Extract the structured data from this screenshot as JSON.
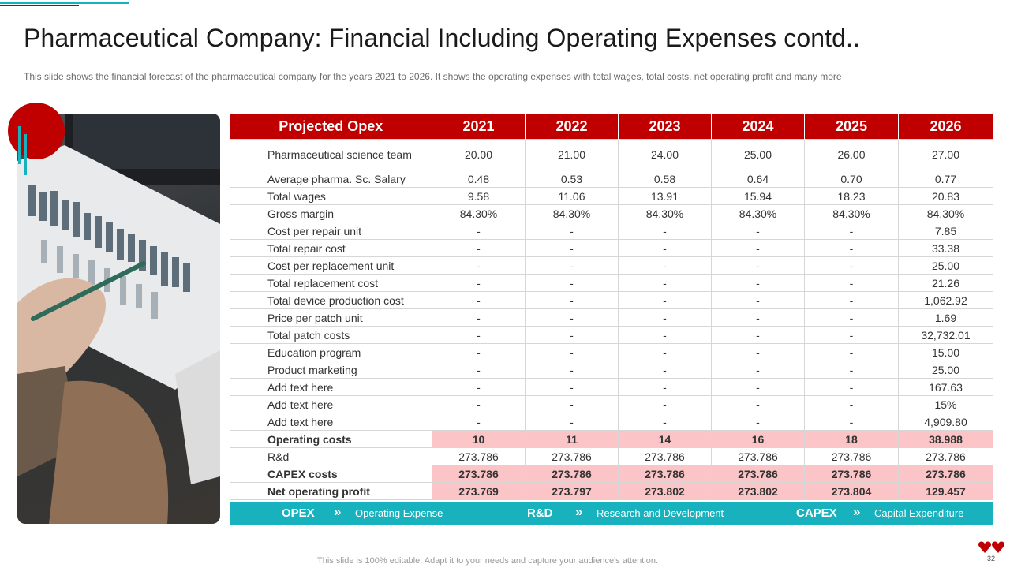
{
  "slide": {
    "title": "Pharmaceutical Company: Financial Including Operating Expenses contd..",
    "subtitle": "This slide shows the financial forecast of the pharmaceutical company for the years 2021 to 2026. It shows the operating expenses with total wages, total costs, net operating profit and many more",
    "footer": "This slide is 100% editable. Adapt it to your needs and capture your audience's attention.",
    "page_number": "32"
  },
  "colors": {
    "accent_red": "#c00000",
    "accent_teal": "#17b2bd",
    "highlight_pink": "#fbc4c6"
  },
  "table": {
    "headers": [
      "Projected Opex",
      "2021",
      "2022",
      "2023",
      "2024",
      "2025",
      "2026"
    ],
    "rows": [
      {
        "label": "Pharmaceutical science team",
        "values": [
          "20.00",
          "21.00",
          "24.00",
          "25.00",
          "26.00",
          "27.00"
        ]
      },
      {
        "label": "Average pharma. Sc. Salary",
        "values": [
          "0.48",
          "0.53",
          "0.58",
          "0.64",
          "0.70",
          "0.77"
        ]
      },
      {
        "label": "Total wages",
        "values": [
          "9.58",
          "11.06",
          "13.91",
          "15.94",
          "18.23",
          "20.83"
        ]
      },
      {
        "label": "Gross margin",
        "values": [
          "84.30%",
          "84.30%",
          "84.30%",
          "84.30%",
          "84.30%",
          "84.30%"
        ]
      },
      {
        "label": "Cost per repair unit",
        "values": [
          "-",
          "-",
          "-",
          "-",
          "-",
          "7.85"
        ]
      },
      {
        "label": "Total repair cost",
        "values": [
          "-",
          "-",
          "-",
          "-",
          "-",
          "33.38"
        ]
      },
      {
        "label": "Cost per replacement unit",
        "values": [
          "-",
          "-",
          "-",
          "-",
          "-",
          "25.00"
        ]
      },
      {
        "label": "Total replacement cost",
        "values": [
          "-",
          "-",
          "-",
          "-",
          "-",
          "21.26"
        ]
      },
      {
        "label": "Total device production cost",
        "values": [
          "-",
          "-",
          "-",
          "-",
          "-",
          "1,062.92"
        ]
      },
      {
        "label": "Price per patch unit",
        "values": [
          "-",
          "-",
          "-",
          "-",
          "-",
          "1.69"
        ]
      },
      {
        "label": "Total patch costs",
        "values": [
          "-",
          "-",
          "-",
          "-",
          "-",
          "32,732.01"
        ]
      },
      {
        "label": "Education program",
        "values": [
          "-",
          "-",
          "-",
          "-",
          "-",
          "15.00"
        ]
      },
      {
        "label": "Product marketing",
        "values": [
          "-",
          "-",
          "-",
          "-",
          "-",
          "25.00"
        ]
      },
      {
        "label": "Add text here",
        "values": [
          "-",
          "-",
          "-",
          "-",
          "-",
          "167.63"
        ]
      },
      {
        "label": "Add text here",
        "values": [
          "-",
          "-",
          "-",
          "-",
          "-",
          "15%"
        ]
      },
      {
        "label": "Add text here",
        "values": [
          "-",
          "-",
          "-",
          "-",
          "-",
          "4,909.80"
        ]
      },
      {
        "label": "Operating costs",
        "values": [
          "10",
          "11",
          "14",
          "16",
          "18",
          "38.988"
        ]
      },
      {
        "label": "R&d",
        "values": [
          "273.786",
          "273.786",
          "273.786",
          "273.786",
          "273.786",
          "273.786"
        ]
      },
      {
        "label": "CAPEX  costs",
        "values": [
          "273.786",
          "273.786",
          "273.786",
          "273.786",
          "273.786",
          "273.786"
        ]
      },
      {
        "label": "Net operating profit",
        "values": [
          "273.769",
          "273.797",
          "273.802",
          "273.802",
          "273.804",
          "129.457"
        ]
      }
    ]
  },
  "legend": [
    {
      "abbr": "OPEX",
      "description": "Operating Expense"
    },
    {
      "abbr": "R&D",
      "description": "Research and Development"
    },
    {
      "abbr": "CAPEX",
      "description": "Capital Expenditure"
    }
  ],
  "legend_separator": "»"
}
